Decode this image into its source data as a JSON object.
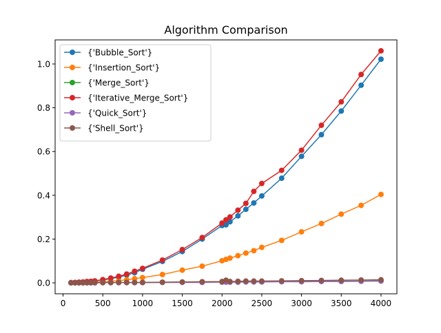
{
  "chart_data": {
    "type": "line",
    "title": "Algorithm Comparison",
    "xlabel": "",
    "ylabel": "",
    "xlim": [
      -100,
      4200
    ],
    "ylim": [
      -0.05,
      1.11
    ],
    "xticks": [
      0,
      500,
      1000,
      1500,
      2000,
      2500,
      3000,
      3500,
      4000
    ],
    "yticks": [
      0.0,
      0.2,
      0.4,
      0.6,
      0.8,
      1.0
    ],
    "xtick_labels": [
      "0",
      "500",
      "1000",
      "1500",
      "2000",
      "2500",
      "3000",
      "3500",
      "4000"
    ],
    "ytick_labels": [
      "0.0",
      "0.2",
      "0.4",
      "0.6",
      "0.8",
      "1.0"
    ],
    "grid": false,
    "legend_position": "top-left",
    "x": [
      100,
      150,
      200,
      250,
      300,
      350,
      400,
      500,
      600,
      700,
      800,
      900,
      1000,
      1250,
      1500,
      1750,
      2000,
      2050,
      2100,
      2200,
      2300,
      2400,
      2500,
      2750,
      3000,
      3250,
      3500,
      3750,
      4000
    ],
    "series": [
      {
        "name": "{'Bubble_Sort'}",
        "color": "#1f77b4",
        "values": [
          0.001,
          0.001,
          0.002,
          0.003,
          0.005,
          0.006,
          0.008,
          0.013,
          0.019,
          0.026,
          0.035,
          0.046,
          0.062,
          0.098,
          0.143,
          0.2,
          0.262,
          0.265,
          0.279,
          0.306,
          0.336,
          0.365,
          0.397,
          0.478,
          0.578,
          0.677,
          0.785,
          0.903,
          1.022
        ]
      },
      {
        "name": "{'Insertion_Sort'}",
        "color": "#ff7f0e",
        "values": [
          0.0,
          0.0,
          0.001,
          0.001,
          0.002,
          0.002,
          0.003,
          0.005,
          0.007,
          0.01,
          0.014,
          0.019,
          0.024,
          0.038,
          0.058,
          0.076,
          0.101,
          0.107,
          0.113,
          0.124,
          0.136,
          0.147,
          0.162,
          0.194,
          0.233,
          0.271,
          0.314,
          0.354,
          0.404
        ]
      },
      {
        "name": "{'Merge_Sort'}",
        "color": "#2ca02c",
        "values": [
          0.0,
          0.0,
          0.0,
          0.0,
          0.0,
          0.0,
          0.001,
          0.001,
          0.001,
          0.001,
          0.001,
          0.001,
          0.002,
          0.002,
          0.003,
          0.003,
          0.004,
          0.004,
          0.004,
          0.004,
          0.005,
          0.005,
          0.005,
          0.006,
          0.006,
          0.007,
          0.007,
          0.008,
          0.009
        ]
      },
      {
        "name": "{'Iterative_Merge_Sort'}",
        "color": "#d62728",
        "values": [
          0.001,
          0.002,
          0.003,
          0.004,
          0.006,
          0.007,
          0.009,
          0.015,
          0.022,
          0.03,
          0.04,
          0.053,
          0.066,
          0.104,
          0.152,
          0.207,
          0.273,
          0.288,
          0.301,
          0.332,
          0.363,
          0.418,
          0.454,
          0.514,
          0.606,
          0.72,
          0.827,
          0.952,
          1.06
        ]
      },
      {
        "name": "{'Quick_Sort'}",
        "color": "#9467bd",
        "values": [
          0.0,
          0.0,
          0.0,
          0.0,
          0.0,
          0.0,
          0.0,
          0.001,
          0.001,
          0.001,
          0.001,
          0.001,
          0.001,
          0.002,
          0.002,
          0.002,
          0.003,
          0.003,
          0.003,
          0.003,
          0.004,
          0.004,
          0.004,
          0.005,
          0.005,
          0.006,
          0.006,
          0.007,
          0.008
        ]
      },
      {
        "name": "{'Shell_Sort'}",
        "color": "#8c564b",
        "values": [
          0.0,
          0.0,
          0.0,
          0.0,
          0.001,
          0.001,
          0.001,
          0.001,
          0.001,
          0.002,
          0.002,
          0.002,
          0.002,
          0.003,
          0.004,
          0.005,
          0.006,
          0.012,
          0.006,
          0.007,
          0.008,
          0.008,
          0.008,
          0.009,
          0.01,
          0.011,
          0.012,
          0.013,
          0.014
        ]
      }
    ]
  }
}
